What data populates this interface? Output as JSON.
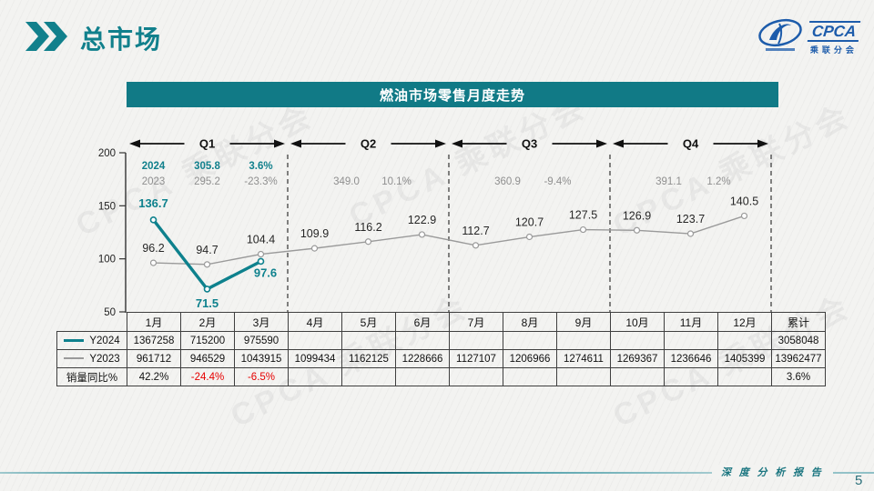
{
  "header": {
    "title": "总市场",
    "logo": {
      "name": "CPCA",
      "subtitle": "乘联分会"
    }
  },
  "chart_data": {
    "type": "line",
    "title": "燃油市场零售月度走势",
    "categories": [
      "1月",
      "2月",
      "3月",
      "4月",
      "5月",
      "6月",
      "7月",
      "8月",
      "9月",
      "10月",
      "11月",
      "12月"
    ],
    "ylim": [
      50,
      200
    ],
    "y_ticks": [
      200,
      150,
      100,
      50
    ],
    "grid": "off",
    "series": [
      {
        "name": "Y2023",
        "color": "#9a9a9a",
        "values": [
          96.2,
          94.7,
          104.4,
          109.9,
          116.2,
          122.9,
          112.7,
          120.7,
          127.5,
          126.9,
          123.7,
          140.5
        ]
      },
      {
        "name": "Y2024",
        "color": "#0e818d",
        "values": [
          136.7,
          71.5,
          97.6
        ]
      }
    ],
    "quarters": [
      {
        "label": "Q1",
        "y2024": {
          "year": "2024",
          "value": "305.8",
          "pct": "3.6%"
        },
        "y2023": {
          "year": "2023",
          "value": "295.2",
          "pct": "-23.3%"
        }
      },
      {
        "label": "Q2",
        "y2023": {
          "value": "349.0",
          "pct": "10.1%"
        }
      },
      {
        "label": "Q3",
        "y2023": {
          "value": "360.9",
          "pct": "-9.4%"
        }
      },
      {
        "label": "Q4",
        "y2023": {
          "value": "391.1",
          "pct": "1.2%"
        }
      }
    ]
  },
  "table": {
    "columns": [
      "1月",
      "2月",
      "3月",
      "4月",
      "5月",
      "6月",
      "7月",
      "8月",
      "9月",
      "10月",
      "11月",
      "12月",
      "累计"
    ],
    "rows": [
      {
        "label": "Y2024",
        "swatch": "#0e818d",
        "swatch_h": 3,
        "cells": [
          "1367258",
          "715200",
          "975590",
          "",
          "",
          "",
          "",
          "",
          "",
          "",
          "",
          "",
          "3058048"
        ]
      },
      {
        "label": "Y2023",
        "swatch": "#9a9a9a",
        "swatch_h": 2,
        "cells": [
          "961712",
          "946529",
          "1043915",
          "1099434",
          "1162125",
          "1228666",
          "1127107",
          "1206966",
          "1274611",
          "1269367",
          "1236646",
          "1405399",
          "13962477"
        ]
      },
      {
        "label": "销量同比%",
        "swatch": null,
        "swatch_h": 0,
        "cells": [
          "42.2%",
          "-24.4%",
          "-6.5%",
          "",
          "",
          "",
          "",
          "",
          "",
          "",
          "",
          "",
          "3.6%"
        ]
      }
    ]
  },
  "footer": {
    "report_label": "深 度 分 析 报 告",
    "page_number": "5"
  },
  "colors": {
    "accent": "#11808c",
    "negative": "#e60000",
    "gray_series": "#9a9a9a",
    "logo_blue": "#1d5cab"
  },
  "watermark": "CPCA 乘联分会"
}
